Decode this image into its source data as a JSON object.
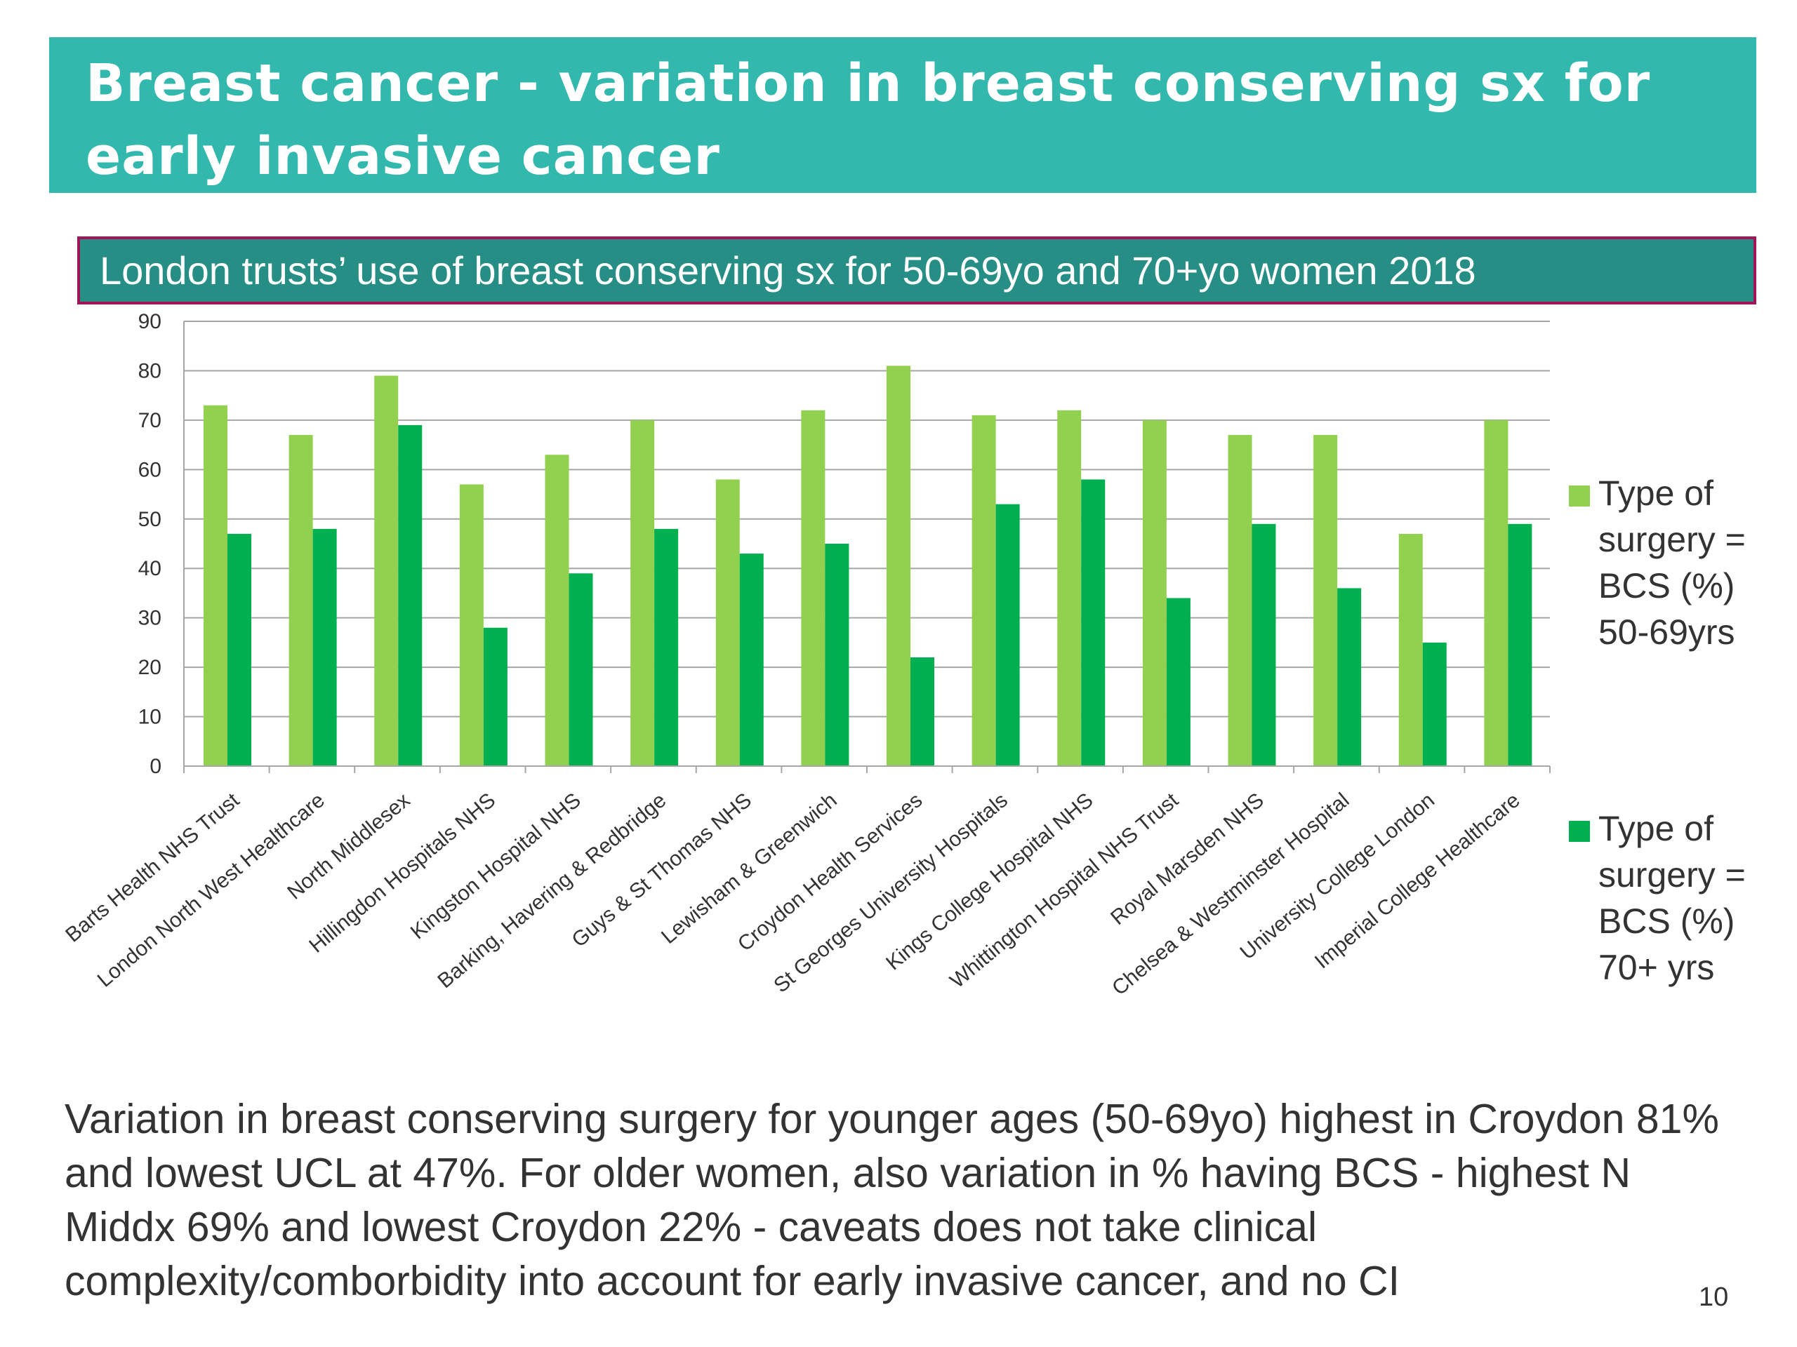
{
  "slide": {
    "title": "Breast cancer - variation in breast conserving sx for early invasive cancer",
    "subtitle": "London trusts’ use of breast conserving sx for 50-69yo and 70+yo women 2018",
    "note": "Variation in breast conserving surgery for younger ages (50-69yo)  highest in Croydon 81% and lowest UCL at 47%.  For older women, also variation in % having BCS  - highest  N Middx 69% and lowest Croydon 22% -  caveats does not take clinical complexity/comborbidity into account for early invasive cancer, and no CI",
    "page_number": "10"
  },
  "colors": {
    "banner": "#33b8ad",
    "subtitle_bg": "#268e85",
    "subtitle_border": "#a0155a",
    "series_50_69": "#92d050",
    "series_70_plus": "#00b050"
  },
  "chart_data": {
    "type": "bar",
    "categories": [
      "Barts Health NHS Trust",
      "London North West Healthcare",
      "North Middlesex",
      "Hillingdon Hospitals NHS",
      "Kingston Hospital NHS",
      "Barking, Havering & Redbridge",
      "Guys & St Thomas NHS",
      "Lewisham & Greenwich",
      "Croydon Health Services",
      "St Georges University Hospitals",
      "Kings College Hospital NHS",
      "Whittington Hospital NHS Trust",
      "Royal Marsden NHS",
      "Chelsea & Westminster Hospital",
      "University College London",
      "Imperial College Healthcare"
    ],
    "series": [
      {
        "name": "Type of surgery = BCS (%) 50-69yrs",
        "color": "#92d050",
        "values": [
          73,
          67,
          79,
          57,
          63,
          70,
          58,
          72,
          81,
          71,
          72,
          70,
          67,
          67,
          47,
          70
        ]
      },
      {
        "name": "Type of surgery = BCS (%) 70+ yrs",
        "color": "#00b050",
        "values": [
          47,
          48,
          69,
          28,
          39,
          48,
          43,
          45,
          22,
          53,
          58,
          34,
          49,
          36,
          25,
          49
        ]
      }
    ],
    "ylim": [
      0,
      90
    ],
    "yticks": [
      0,
      10,
      20,
      30,
      40,
      50,
      60,
      70,
      80,
      90
    ],
    "xlabel": "",
    "ylabel": "",
    "grid": true,
    "legend_position": "right"
  }
}
